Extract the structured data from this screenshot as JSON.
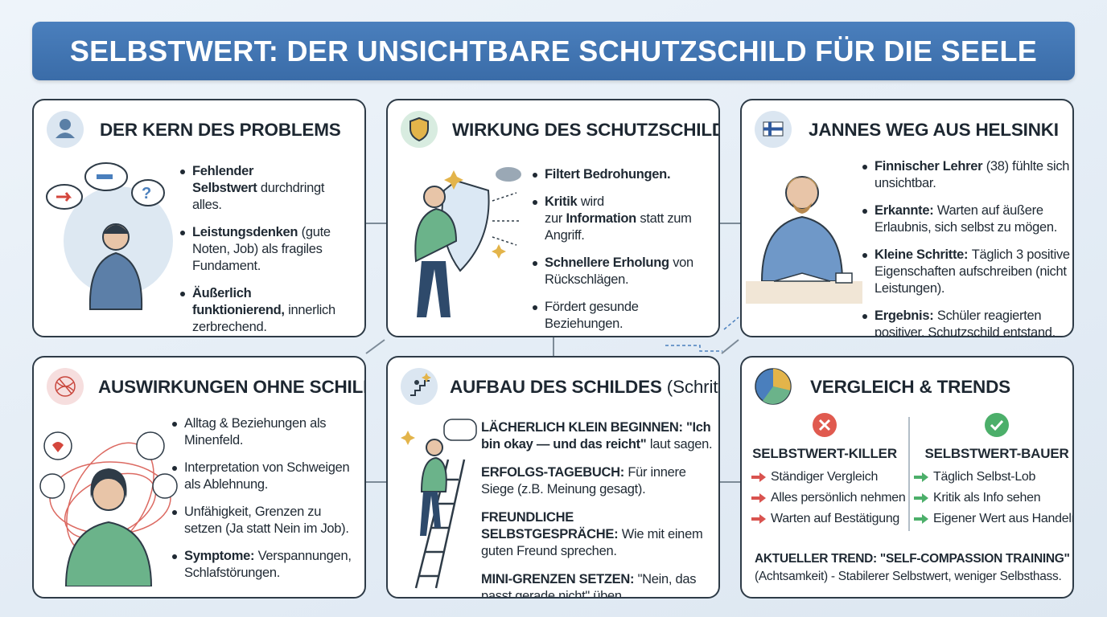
{
  "header": {
    "title": "SELBSTWERT: DER UNSICHTBARE SCHUTZSCHILD FÜR DIE SEELE"
  },
  "panels": [
    {
      "title": "DER KERN DES PROBLEMS",
      "bullets": [
        [
          {
            "text": "Fehlender Selbstwert",
            "bold": true
          },
          {
            "text": "durchdringt alles."
          }
        ],
        [
          {
            "text": "Leistungsdenken",
            "bold": true
          },
          {
            "text": "(gute Noten, Job) als fragiles Fundament."
          }
        ],
        [
          {
            "text": "Äußerlich funktionierend,",
            "bold": true
          },
          {
            "text": "innerlich zerbrechend."
          }
        ]
      ]
    },
    {
      "title": "WIRKUNG DES SCHUTZSCHILDS",
      "bullets": [
        [
          {
            "text": "Filtert Bedrohungen.",
            "bold": true
          }
        ],
        [
          {
            "text": "Kritik",
            "bold": true
          },
          {
            "text": "wird zur"
          },
          {
            "text": "Information",
            "bold": true
          },
          {
            "text": "statt zum Angriff."
          }
        ],
        [
          {
            "text": "Schnellere Erholung",
            "bold": true
          },
          {
            "text": "von Rückschlägen."
          }
        ],
        [
          {
            "text": "Fördert gesunde Beziehungen."
          }
        ]
      ]
    },
    {
      "title": "JANNES WEG AUS HELSINKI",
      "bullets": [
        [
          {
            "text": "Finnischer Lehrer",
            "bold": true
          },
          {
            "text": "(38) fühlte sich unsichtbar."
          }
        ],
        [
          {
            "text": "Erkannte:",
            "bold": true
          },
          {
            "text": "Warten auf äußere Erlaubnis, sich selbst zu mögen."
          }
        ],
        [
          {
            "text": "Kleine Schritte:",
            "bold": true
          },
          {
            "text": "Täglich 3 positive Eigenschaften aufschreiben (nicht Leistungen)."
          }
        ],
        [
          {
            "text": "Ergebnis:",
            "bold": true
          },
          {
            "text": "Schüler reagierten positiver, Schutzschild entstand."
          }
        ]
      ]
    },
    {
      "title": "AUSWIRKUNGEN OHNE SCHILD",
      "bullets": [
        [
          {
            "text": "Alltag & Beziehungen als Minenfeld."
          }
        ],
        [
          {
            "text": "Interpretation von Schweigen als Ablehnung."
          }
        ],
        [
          {
            "text": "Unfähigkeit, Grenzen zu setzen (Ja statt Nein im Job)."
          }
        ],
        [
          {
            "text": "Symptome:",
            "bold": true
          },
          {
            "text": "Verspannungen, Schlafstörungen."
          }
        ]
      ]
    },
    {
      "title": "AUFBAU DES SCHILDES",
      "title_note": "(Schritte)",
      "bullets": [
        [
          {
            "text": "LÄCHERLICH KLEIN BEGINNEN: \"Ich bin okay — und das reicht\"",
            "bold": true
          },
          {
            "text": "laut sagen."
          }
        ],
        [
          {
            "text": "ERFOLGS-TAGEBUCH:",
            "bold": true
          },
          {
            "text": "Für innere Siege (z.B. Meinung gesagt)."
          }
        ],
        [
          {
            "text": "FREUNDLICHE SELBSTGESPRÄCHE:",
            "bold": true
          },
          {
            "text": "Wie mit einem guten Freund sprechen."
          }
        ],
        [
          {
            "text": "MINI-GRENZEN SETZEN:",
            "bold": true
          },
          {
            "text": "\"Nein, das passt gerade nicht\" üben."
          }
        ]
      ]
    },
    {
      "title": "VERGLEICH & TRENDS",
      "left": {
        "title": "SELBSTWERT-KILLER",
        "items": [
          "Ständiger Vergleich",
          "Alles persönlich nehmen",
          "Warten auf Bestätigung"
        ]
      },
      "right": {
        "title": "SELBSTWERT-BAUER",
        "items": [
          "Täglich Selbst-Lob",
          "Kritik als Info sehen",
          "Eigener Wert aus Handeln"
        ]
      },
      "trend": {
        "title": "AKTUELLER TREND: \"SELF-COMPASSION TRAINING\"",
        "text": "(Achtsamkeit) - Stabilerer Selbstwert, weniger Selbsthass."
      }
    }
  ]
}
